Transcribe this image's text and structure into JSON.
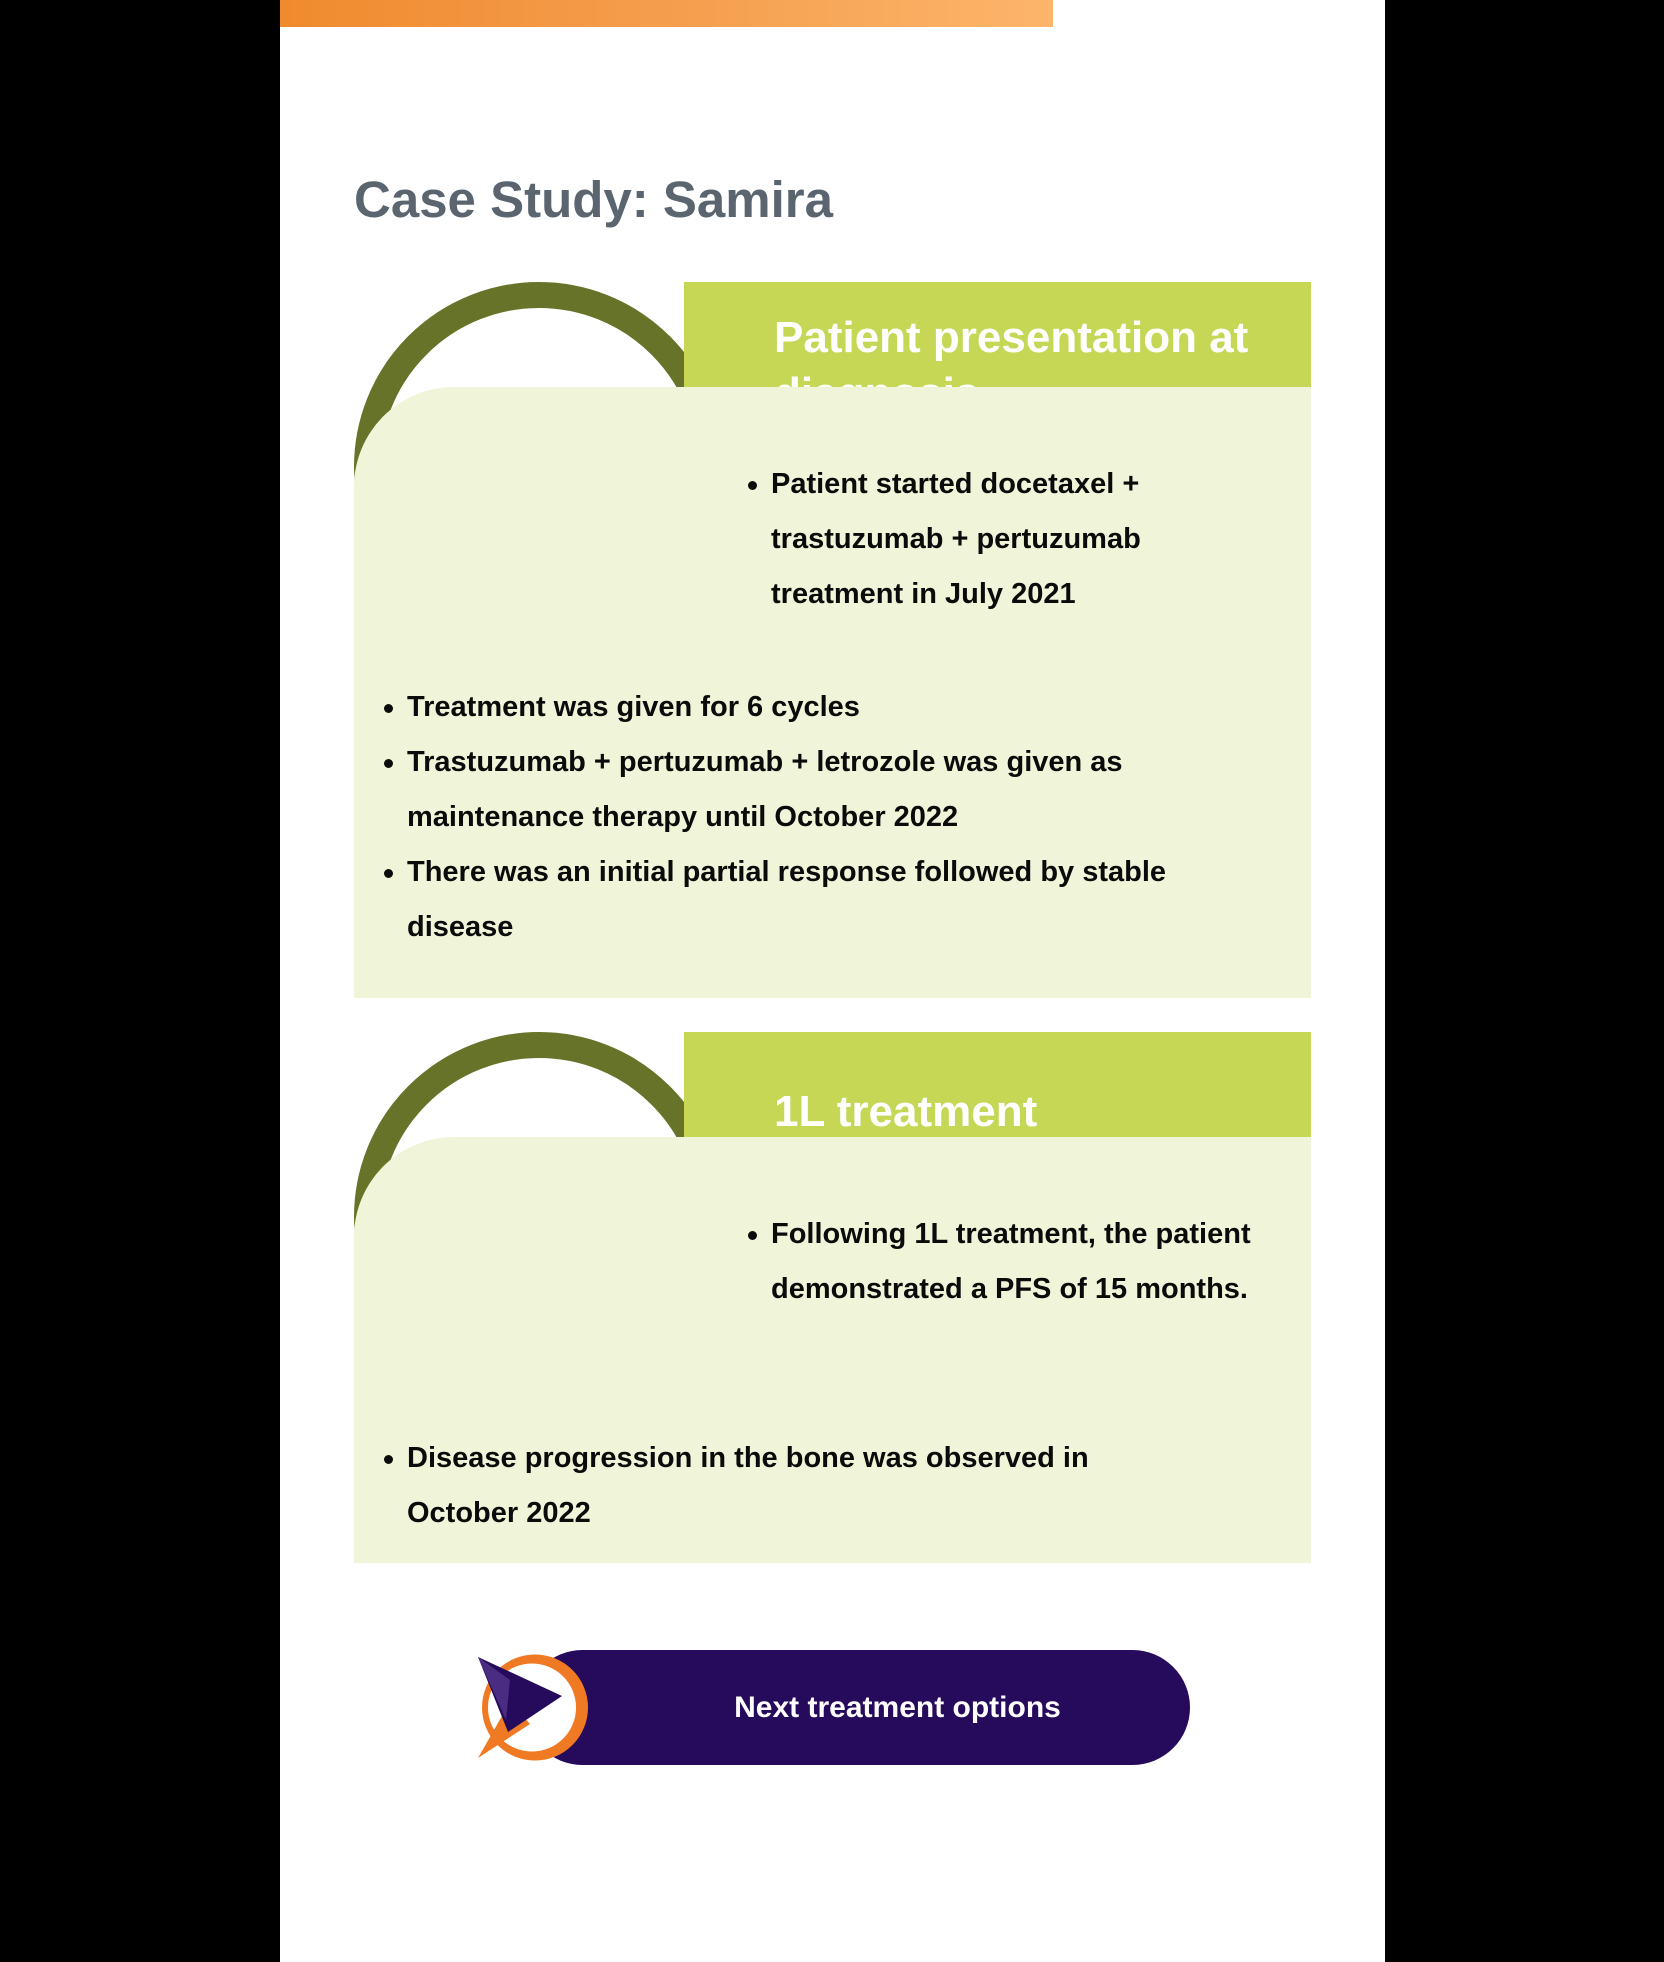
{
  "title": "Case Study: Samira",
  "colors": {
    "accent_orange": "#f08a2e",
    "card_header": "#c5d755",
    "card_ring": "#667328",
    "card_body": "#f0f5d9",
    "title_gray": "#5a6570",
    "button_bg": "#260a5b"
  },
  "sections": [
    {
      "heading": "Patient presentation at diagnosis",
      "icon": "circle-ring-icon",
      "bullets_right": [
        "Patient started docetaxel + trastuzumab + pertuzumab treatment in July 2021"
      ],
      "bullets_full": [
        "Treatment was given for 6 cycles",
        "Trastuzumab + pertuzumab + letrozole was given as maintenance therapy until October 2022",
        "There was an initial partial response followed by stable disease"
      ]
    },
    {
      "heading": "1L treatment",
      "icon": "circle-ring-icon",
      "bullets_right": [
        "Following 1L treatment, the patient demonstrated a PFS of 15 months."
      ],
      "bullets_full": [
        "Disease progression in the bone was observed in October 2022"
      ]
    }
  ],
  "cta": {
    "label": "Next treatment options",
    "icon": "play-arrow-icon"
  }
}
